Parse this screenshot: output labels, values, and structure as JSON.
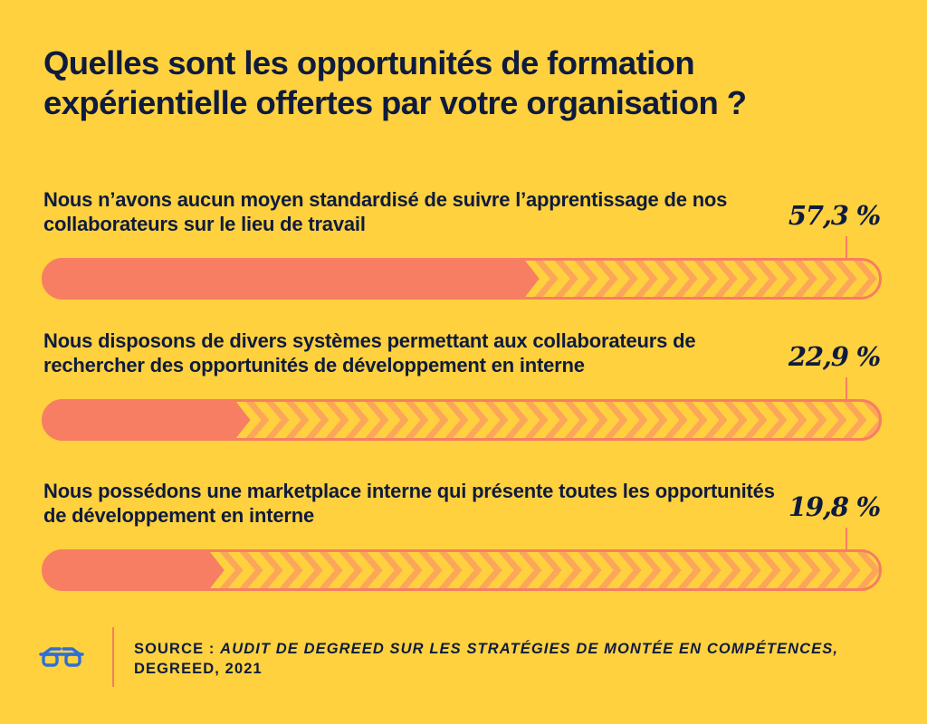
{
  "title": "Quelles sont les opportunités de formation expérientielle offertes par votre organisation ?",
  "chart_data": {
    "type": "bar",
    "orientation": "horizontal",
    "title": "Quelles sont les opportunités de formation expérientielle offertes par votre organisation ?",
    "categories": [
      "Nous n’avons aucun moyen standardisé de suivre l’apprentissage de nos collaborateurs sur le lieu de travail",
      "Nous disposons de divers systèmes permettant aux collaborateurs de rechercher des opportunités de développement en interne",
      "Nous possédons une marketplace interne qui présente toutes les opportunités de développement en interne"
    ],
    "values": [
      57.3,
      22.9,
      19.8
    ],
    "value_labels": [
      "57,3 %",
      "22,9 %",
      "19,8 %"
    ],
    "unit": "%",
    "xlim": [
      0,
      100
    ],
    "colors": {
      "fill": "#F77E62",
      "chevron": "#FCA65A",
      "outline": "#F77E62",
      "background": "#FFD13F"
    }
  },
  "source": {
    "prefix": "SOURCE :",
    "title": "AUDIT DE DEGREED SUR LES STRATÉGIES DE MONTÉE EN COMPÉTENCES,",
    "suffix": "DEGREED, 2021"
  },
  "logo_icon": "glasses-icon",
  "colors": {
    "background": "#FFD13F",
    "text": "#0F1B3D",
    "accent": "#F77E62",
    "logo": "#2D6FD8"
  }
}
